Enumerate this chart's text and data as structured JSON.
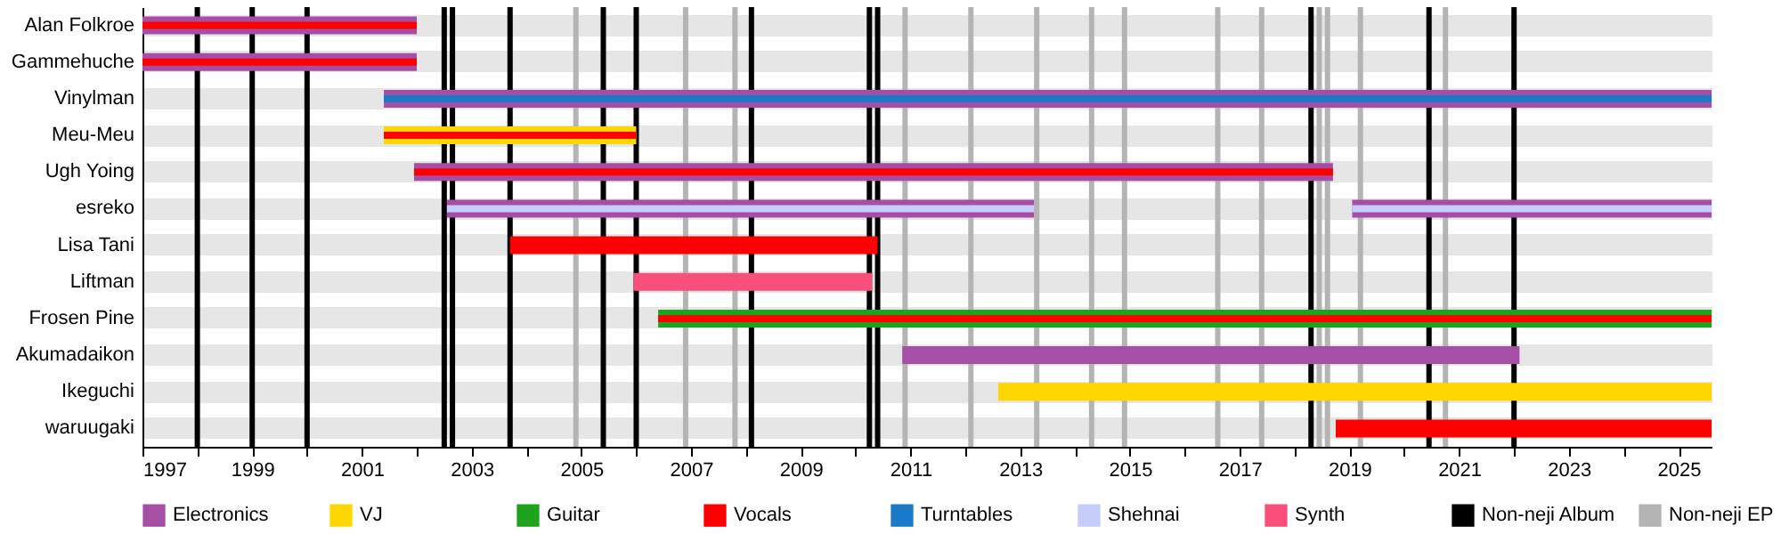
{
  "chart_data": {
    "type": "bar",
    "orientation": "horizontal",
    "grid": "y",
    "legend": "bottom",
    "categories": [
      "Alan Folkroe",
      "Gammehuche",
      "Vinylman",
      "Meu-Meu",
      "Ugh Yoing",
      "esreko",
      "Lisa Tani",
      "Liftman",
      "Frosen Pine",
      "Akumadaikon",
      "Ikeguchi",
      "waruugaki"
    ],
    "xlim": [
      1997,
      2025.6
    ],
    "xticks": [
      1997,
      {
        "value": 1998,
        "label": null
      },
      1999,
      {
        "value": 2000,
        "label": null
      },
      2001,
      {
        "value": 2002,
        "label": null
      },
      2003,
      {
        "value": 2004,
        "label": null
      },
      2005,
      {
        "value": 2006,
        "label": null
      },
      2007,
      {
        "value": 2008,
        "label": null
      },
      2009,
      {
        "value": 2010,
        "label": null
      },
      2011,
      {
        "value": 2012,
        "label": null
      },
      2013,
      {
        "value": 2014,
        "label": null
      },
      2015,
      {
        "value": 2016,
        "label": null
      },
      2017,
      {
        "value": 2018,
        "label": null
      },
      2019,
      {
        "value": 2020,
        "label": null
      },
      2021,
      {
        "value": 2022,
        "label": null
      },
      2023,
      {
        "value": 2024,
        "label": null
      },
      2025
    ],
    "series": [
      {
        "name": "Electronics",
        "color": "#a54ea5",
        "base": [
          1997,
          1997,
          2001.4,
          null,
          2001.95,
          2002.55,
          null,
          null,
          null,
          2010.85,
          null,
          null
        ],
        "values": [
          5.0,
          5.0,
          24.2,
          null,
          16.75,
          10.7,
          null,
          null,
          null,
          11.25,
          null,
          null
        ]
      },
      {
        "name": "VJ",
        "color": "#ffd700",
        "base": [
          null,
          null,
          null,
          2001.4,
          null,
          null,
          null,
          null,
          null,
          null,
          2012.6,
          null
        ],
        "values": [
          null,
          null,
          null,
          4.6,
          null,
          null,
          null,
          null,
          null,
          null,
          13.0,
          null
        ]
      },
      {
        "name": "Guitar",
        "color": "#1ea31e",
        "base": [
          null,
          null,
          null,
          null,
          null,
          null,
          null,
          null,
          2006.4,
          null,
          null,
          null
        ],
        "values": [
          null,
          null,
          null,
          null,
          null,
          null,
          null,
          null,
          19.2,
          null,
          null,
          null
        ]
      },
      {
        "name": "Vocals",
        "color": "#ff0000",
        "base": [
          1997,
          1997,
          null,
          2001.4,
          2001.95,
          null,
          2003.7,
          null,
          2006.4,
          null,
          null,
          2018.75
        ],
        "values": [
          5.0,
          5.0,
          null,
          4.6,
          16.75,
          null,
          6.7,
          null,
          19.2,
          null,
          null,
          6.85
        ]
      },
      {
        "name": "Turntables",
        "color": "#1a7ac8",
        "base": [
          null,
          null,
          2001.4,
          null,
          null,
          null,
          null,
          null,
          null,
          null,
          null,
          null
        ],
        "values": [
          null,
          null,
          24.2,
          null,
          null,
          null,
          null,
          null,
          null,
          null,
          null,
          null
        ]
      },
      {
        "name": "Shehnai",
        "color": "#c6cdfa",
        "base": [
          null,
          null,
          null,
          null,
          null,
          2002.55,
          null,
          null,
          null,
          null,
          null,
          null
        ],
        "values": [
          null,
          null,
          null,
          null,
          null,
          10.7,
          null,
          null,
          null,
          null,
          null,
          null
        ]
      },
      {
        "name": "Synth",
        "color": "#f8507a",
        "base": [
          null,
          null,
          null,
          null,
          null,
          null,
          null,
          2005.95,
          null,
          null,
          null,
          null
        ],
        "values": [
          null,
          null,
          null,
          null,
          null,
          null,
          null,
          4.35,
          null,
          null,
          null,
          null
        ]
      },
      {
        "color": "#a54ea5",
        "base": [
          null,
          null,
          null,
          null,
          null,
          2019.05,
          null,
          null,
          null,
          null,
          null,
          null
        ],
        "values": [
          null,
          null,
          null,
          null,
          null,
          6.55,
          null,
          null,
          null,
          null,
          null,
          null
        ]
      },
      {
        "color": "#c6cdfa",
        "base": [
          null,
          null,
          null,
          null,
          null,
          2019.05,
          null,
          null,
          null,
          null,
          null,
          null
        ],
        "values": [
          null,
          null,
          null,
          null,
          null,
          6.55,
          null,
          null,
          null,
          null,
          null,
          null
        ]
      }
    ],
    "ref_lines": [
      {
        "axis": "x",
        "value": 1998.0,
        "label": "Non-neji Album",
        "color": "#000000"
      },
      {
        "axis": "x",
        "value": 1999.0,
        "color": "#000000"
      },
      {
        "axis": "x",
        "value": 2000.0,
        "color": "#000000"
      },
      {
        "axis": "x",
        "value": 2002.5,
        "color": "#000000"
      },
      {
        "axis": "x",
        "value": 2002.65,
        "color": "#000000"
      },
      {
        "axis": "x",
        "value": 2003.7,
        "color": "#000000"
      },
      {
        "axis": "x",
        "value": 2005.4,
        "color": "#000000"
      },
      {
        "axis": "x",
        "value": 2006.0,
        "color": "#000000"
      },
      {
        "axis": "x",
        "value": 2008.1,
        "color": "#000000"
      },
      {
        "axis": "x",
        "value": 2010.25,
        "color": "#000000"
      },
      {
        "axis": "x",
        "value": 2010.4,
        "color": "#000000"
      },
      {
        "axis": "x",
        "value": 2018.3,
        "color": "#000000"
      },
      {
        "axis": "x",
        "value": 2020.45,
        "color": "#000000"
      },
      {
        "axis": "x",
        "value": 2022.0,
        "color": "#000000"
      },
      {
        "axis": "x",
        "value": 2004.9,
        "label": "Non-neji EP",
        "color": "#b4b4b4"
      },
      {
        "axis": "x",
        "value": 2006.9,
        "color": "#b4b4b4"
      },
      {
        "axis": "x",
        "value": 2007.8,
        "color": "#b4b4b4"
      },
      {
        "axis": "x",
        "value": 2010.9,
        "color": "#b4b4b4"
      },
      {
        "axis": "x",
        "value": 2012.1,
        "color": "#b4b4b4"
      },
      {
        "axis": "x",
        "value": 2013.3,
        "color": "#b4b4b4"
      },
      {
        "axis": "x",
        "value": 2014.3,
        "color": "#b4b4b4"
      },
      {
        "axis": "x",
        "value": 2014.9,
        "color": "#b4b4b4"
      },
      {
        "axis": "x",
        "value": 2016.6,
        "color": "#b4b4b4"
      },
      {
        "axis": "x",
        "value": 2017.4,
        "color": "#b4b4b4"
      },
      {
        "axis": "x",
        "value": 2018.45,
        "color": "#b4b4b4"
      },
      {
        "axis": "x",
        "value": 2018.6,
        "color": "#b4b4b4"
      },
      {
        "axis": "x",
        "value": 2019.2,
        "color": "#b4b4b4"
      },
      {
        "axis": "x",
        "value": 2020.75,
        "color": "#b4b4b4"
      }
    ]
  }
}
